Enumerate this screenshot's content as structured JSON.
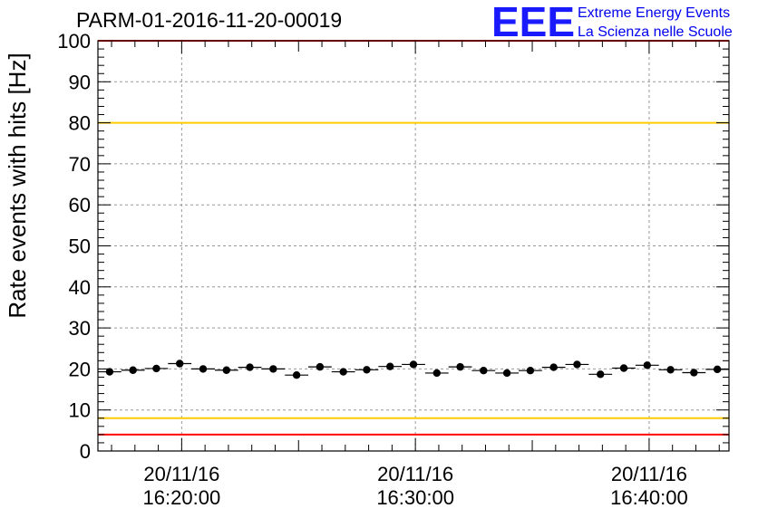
{
  "chart_data": {
    "type": "scatter",
    "title": "PARM-01-2016-11-20-00019",
    "ylabel": "Rate events with hits [Hz]",
    "xlabel": "",
    "ylim": [
      0,
      100
    ],
    "yticks": [
      "0",
      "10",
      "20",
      "30",
      "40",
      "50",
      "60",
      "70",
      "80",
      "90",
      "100"
    ],
    "xticks": [
      {
        "date": "20/11/16",
        "time": "16:20:00"
      },
      {
        "date": "20/11/16",
        "time": "16:30:00"
      },
      {
        "date": "20/11/16",
        "time": "16:40:00"
      }
    ],
    "grid": true,
    "reference_lines": [
      {
        "value": 100,
        "color": "#ff0000"
      },
      {
        "value": 80,
        "color": "#ffcc00"
      },
      {
        "value": 8,
        "color": "#ffcc00"
      },
      {
        "value": 4,
        "color": "#ff0000"
      }
    ],
    "series": [
      {
        "x": [
          "16:16:55",
          "16:17:55",
          "16:18:55",
          "16:19:55",
          "16:20:55",
          "16:21:55",
          "16:22:55",
          "16:23:55",
          "16:24:55",
          "16:25:55",
          "16:26:55",
          "16:27:55",
          "16:28:55",
          "16:29:55",
          "16:30:55",
          "16:31:55",
          "16:32:55",
          "16:33:55",
          "16:34:55",
          "16:35:55",
          "16:36:55",
          "16:37:55",
          "16:38:55",
          "16:39:55",
          "16:40:55",
          "16:41:55",
          "16:42:55"
        ],
        "values": [
          19.3,
          19.7,
          20.1,
          21.3,
          20.0,
          19.7,
          20.4,
          20.0,
          18.5,
          20.5,
          19.3,
          19.8,
          20.6,
          21.1,
          19.0,
          20.5,
          19.6,
          19.0,
          19.6,
          20.4,
          21.1,
          18.7,
          20.2,
          20.9,
          19.8,
          19.1,
          19.9
        ]
      }
    ]
  },
  "logo": {
    "mark": "EEE",
    "line1": "Extreme Energy Events",
    "line2": "La Scienza nelle Scuole"
  }
}
